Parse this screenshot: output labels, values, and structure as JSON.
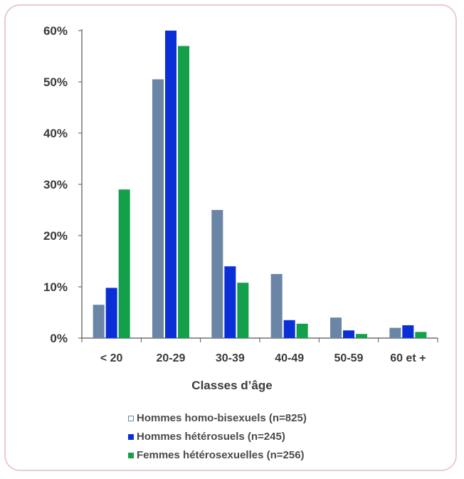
{
  "chart_data": {
    "type": "bar",
    "xlabel": "Classes d’âge",
    "categories": [
      "< 20",
      "20-29",
      "30-39",
      "40-49",
      "50-59",
      "60 et +"
    ],
    "y_ticks": [
      "0%",
      "10%",
      "20%",
      "30%",
      "40%",
      "50%",
      "60%"
    ],
    "ylim": [
      0,
      60
    ],
    "series": [
      {
        "name": "Hommes homo-bisexuels (n=825)",
        "color": "#6a85a6",
        "values": [
          6.5,
          50.5,
          25,
          12.5,
          4,
          2
        ]
      },
      {
        "name": "Hommes hétérosuels (n=245)",
        "color": "#0a2fd6",
        "values": [
          9.8,
          60,
          14,
          3.5,
          1.5,
          2.5
        ]
      },
      {
        "name": "Femmes hétérosexuelles (n=256)",
        "color": "#14a04a",
        "values": [
          29,
          57,
          10.8,
          2.8,
          0.8,
          1.2
        ]
      }
    ],
    "legend_position": "bottom",
    "grid": false
  }
}
